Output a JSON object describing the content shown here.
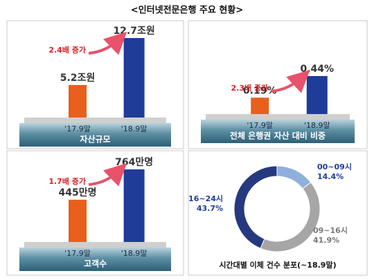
{
  "title": "<인터넷전문은행 주요 현황>",
  "chart_data": [
    {
      "type": "bar",
      "categories": [
        "'17.9말",
        "'18.9말"
      ],
      "values": [
        5.2,
        12.7
      ],
      "value_labels": [
        "5.2조원",
        "12.7조원"
      ],
      "colors": [
        "#e8601c",
        "#1f3c98"
      ],
      "annotation": "2.4배 증가",
      "xlabel": "자산규모"
    },
    {
      "type": "bar",
      "categories": [
        "'17.9말",
        "'18.9말"
      ],
      "values": [
        0.19,
        0.44
      ],
      "value_labels": [
        "0.19%",
        "0.44%"
      ],
      "colors": [
        "#e8601c",
        "#1f3c98"
      ],
      "annotation": "2.3배 증가",
      "xlabel": "전체 은행권 자산 대비 비중"
    },
    {
      "type": "bar",
      "categories": [
        "'17.9말",
        "'18.9말"
      ],
      "values": [
        445,
        764
      ],
      "value_labels": [
        "445만명",
        "764만명"
      ],
      "colors": [
        "#e8601c",
        "#1f3c98"
      ],
      "annotation": "1.7배 증가",
      "xlabel": "고객수"
    },
    {
      "type": "pie",
      "title": "시간대별 이체 건수 분포(~18.9말)",
      "categories": [
        "00~09시",
        "09~16시",
        "16~24시"
      ],
      "values": [
        14.4,
        41.9,
        43.7
      ],
      "value_labels": [
        "14.4%",
        "41.9%",
        "43.7%"
      ],
      "colors": [
        "#8fb0dc",
        "#a6a6a6",
        "#26397f"
      ]
    }
  ]
}
